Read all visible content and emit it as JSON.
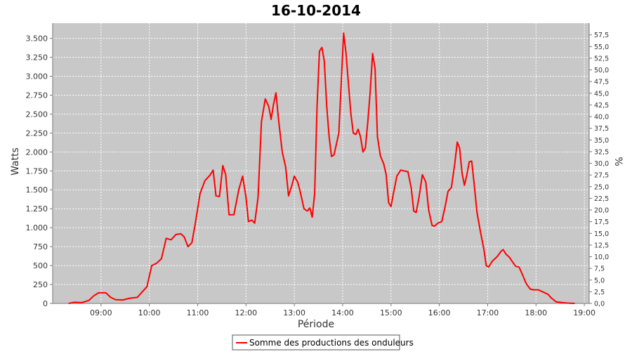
{
  "chart_data": {
    "type": "line",
    "title": "16-10-2014",
    "xlabel": "Période",
    "ylabel": "Watts",
    "y2label": "%",
    "xlim": [
      8.0,
      19.1
    ],
    "ylim": [
      0,
      3700
    ],
    "y2lim": [
      0,
      60
    ],
    "x_ticks": [
      {
        "value": 9,
        "label": "09:00"
      },
      {
        "value": 10,
        "label": "10:00"
      },
      {
        "value": 11,
        "label": "11:00"
      },
      {
        "value": 12,
        "label": "12:00"
      },
      {
        "value": 13,
        "label": "13:00"
      },
      {
        "value": 14,
        "label": "14:00"
      },
      {
        "value": 15,
        "label": "15:00"
      },
      {
        "value": 16,
        "label": "16:00"
      },
      {
        "value": 17,
        "label": "17:00"
      },
      {
        "value": 18,
        "label": "18:00"
      },
      {
        "value": 19,
        "label": "19:00"
      }
    ],
    "y_ticks": [
      {
        "value": 0,
        "label": "0"
      },
      {
        "value": 250,
        "label": "250"
      },
      {
        "value": 500,
        "label": "500"
      },
      {
        "value": 750,
        "label": "750"
      },
      {
        "value": 1000,
        "label": "1.000"
      },
      {
        "value": 1250,
        "label": "1.250"
      },
      {
        "value": 1500,
        "label": "1.500"
      },
      {
        "value": 1750,
        "label": "1.750"
      },
      {
        "value": 2000,
        "label": "2.000"
      },
      {
        "value": 2250,
        "label": "2.250"
      },
      {
        "value": 2500,
        "label": "2.500"
      },
      {
        "value": 2750,
        "label": "2.750"
      },
      {
        "value": 3000,
        "label": "3.000"
      },
      {
        "value": 3250,
        "label": "3.250"
      },
      {
        "value": 3500,
        "label": "3.500"
      }
    ],
    "y2_ticks": [
      {
        "value": 0,
        "label": "0,0"
      },
      {
        "value": 2.5,
        "label": "2,5"
      },
      {
        "value": 5,
        "label": "5,0"
      },
      {
        "value": 7.5,
        "label": "7,5"
      },
      {
        "value": 10,
        "label": "10,0"
      },
      {
        "value": 12.5,
        "label": "12,5"
      },
      {
        "value": 15,
        "label": "15,0"
      },
      {
        "value": 17.5,
        "label": "17,5"
      },
      {
        "value": 20,
        "label": "20,0"
      },
      {
        "value": 22.5,
        "label": "22,5"
      },
      {
        "value": 25,
        "label": "25,0"
      },
      {
        "value": 27.5,
        "label": "27,5"
      },
      {
        "value": 30,
        "label": "30,0"
      },
      {
        "value": 32.5,
        "label": "32,5"
      },
      {
        "value": 35,
        "label": "35,0"
      },
      {
        "value": 37.5,
        "label": "37,5"
      },
      {
        "value": 40,
        "label": "40,0"
      },
      {
        "value": 42.5,
        "label": "42,5"
      },
      {
        "value": 45,
        "label": "45,0"
      },
      {
        "value": 47.5,
        "label": "47,5"
      },
      {
        "value": 50,
        "label": "50,0"
      },
      {
        "value": 52.5,
        "label": "52,5"
      },
      {
        "value": 55,
        "label": "55,0"
      },
      {
        "value": 57.5,
        "label": "57,5"
      }
    ],
    "grid": true,
    "legend_position": "bottom-center",
    "colors": {
      "background": "#c8c8c8",
      "grid": "#ffffff",
      "series": "#ff0000"
    },
    "series": [
      {
        "name": "Somme des productions des onduleurs",
        "points": [
          [
            8.33,
            0
          ],
          [
            8.45,
            15
          ],
          [
            8.6,
            10
          ],
          [
            8.75,
            40
          ],
          [
            8.85,
            100
          ],
          [
            8.95,
            140
          ],
          [
            9.1,
            140
          ],
          [
            9.2,
            80
          ],
          [
            9.3,
            50
          ],
          [
            9.45,
            45
          ],
          [
            9.6,
            70
          ],
          [
            9.75,
            80
          ],
          [
            9.85,
            150
          ],
          [
            9.95,
            220
          ],
          [
            10.05,
            500
          ],
          [
            10.15,
            530
          ],
          [
            10.25,
            590
          ],
          [
            10.35,
            860
          ],
          [
            10.45,
            840
          ],
          [
            10.55,
            910
          ],
          [
            10.65,
            920
          ],
          [
            10.72,
            880
          ],
          [
            10.8,
            750
          ],
          [
            10.88,
            800
          ],
          [
            10.95,
            1050
          ],
          [
            11.05,
            1450
          ],
          [
            11.15,
            1620
          ],
          [
            11.25,
            1690
          ],
          [
            11.32,
            1760
          ],
          [
            11.38,
            1420
          ],
          [
            11.45,
            1410
          ],
          [
            11.52,
            1820
          ],
          [
            11.58,
            1700
          ],
          [
            11.65,
            1170
          ],
          [
            11.75,
            1170
          ],
          [
            11.85,
            1500
          ],
          [
            11.93,
            1680
          ],
          [
            12.0,
            1400
          ],
          [
            12.05,
            1080
          ],
          [
            12.12,
            1100
          ],
          [
            12.18,
            1060
          ],
          [
            12.25,
            1400
          ],
          [
            12.32,
            2400
          ],
          [
            12.4,
            2700
          ],
          [
            12.47,
            2600
          ],
          [
            12.52,
            2430
          ],
          [
            12.57,
            2630
          ],
          [
            12.62,
            2780
          ],
          [
            12.67,
            2450
          ],
          [
            12.75,
            2000
          ],
          [
            12.82,
            1800
          ],
          [
            12.88,
            1420
          ],
          [
            12.95,
            1560
          ],
          [
            13.0,
            1680
          ],
          [
            13.07,
            1600
          ],
          [
            13.12,
            1480
          ],
          [
            13.2,
            1250
          ],
          [
            13.27,
            1220
          ],
          [
            13.32,
            1260
          ],
          [
            13.37,
            1140
          ],
          [
            13.42,
            1450
          ],
          [
            13.47,
            2600
          ],
          [
            13.52,
            3330
          ],
          [
            13.57,
            3380
          ],
          [
            13.62,
            3200
          ],
          [
            13.67,
            2600
          ],
          [
            13.72,
            2200
          ],
          [
            13.77,
            1940
          ],
          [
            13.82,
            1960
          ],
          [
            13.87,
            2100
          ],
          [
            13.92,
            2250
          ],
          [
            13.97,
            2900
          ],
          [
            14.02,
            3570
          ],
          [
            14.07,
            3300
          ],
          [
            14.12,
            2900
          ],
          [
            14.17,
            2500
          ],
          [
            14.22,
            2250
          ],
          [
            14.27,
            2230
          ],
          [
            14.32,
            2300
          ],
          [
            14.37,
            2200
          ],
          [
            14.42,
            2000
          ],
          [
            14.47,
            2050
          ],
          [
            14.52,
            2400
          ],
          [
            14.57,
            2800
          ],
          [
            14.62,
            3300
          ],
          [
            14.67,
            3100
          ],
          [
            14.72,
            2200
          ],
          [
            14.78,
            1950
          ],
          [
            14.85,
            1840
          ],
          [
            14.9,
            1700
          ],
          [
            14.95,
            1330
          ],
          [
            15.0,
            1280
          ],
          [
            15.05,
            1450
          ],
          [
            15.12,
            1680
          ],
          [
            15.2,
            1760
          ],
          [
            15.27,
            1750
          ],
          [
            15.35,
            1740
          ],
          [
            15.42,
            1520
          ],
          [
            15.47,
            1220
          ],
          [
            15.52,
            1200
          ],
          [
            15.58,
            1400
          ],
          [
            15.65,
            1700
          ],
          [
            15.72,
            1600
          ],
          [
            15.78,
            1230
          ],
          [
            15.85,
            1030
          ],
          [
            15.9,
            1020
          ],
          [
            15.97,
            1060
          ],
          [
            16.05,
            1080
          ],
          [
            16.12,
            1280
          ],
          [
            16.18,
            1480
          ],
          [
            16.25,
            1530
          ],
          [
            16.32,
            1850
          ],
          [
            16.37,
            2130
          ],
          [
            16.42,
            2050
          ],
          [
            16.47,
            1720
          ],
          [
            16.52,
            1560
          ],
          [
            16.57,
            1700
          ],
          [
            16.62,
            1870
          ],
          [
            16.67,
            1880
          ],
          [
            16.72,
            1580
          ],
          [
            16.78,
            1200
          ],
          [
            16.85,
            950
          ],
          [
            16.92,
            720
          ],
          [
            16.97,
            500
          ],
          [
            17.02,
            480
          ],
          [
            17.1,
            560
          ],
          [
            17.2,
            620
          ],
          [
            17.28,
            690
          ],
          [
            17.32,
            710
          ],
          [
            17.38,
            650
          ],
          [
            17.45,
            610
          ],
          [
            17.5,
            560
          ],
          [
            17.58,
            490
          ],
          [
            17.65,
            480
          ],
          [
            17.72,
            380
          ],
          [
            17.8,
            260
          ],
          [
            17.88,
            190
          ],
          [
            17.95,
            180
          ],
          [
            18.05,
            180
          ],
          [
            18.15,
            150
          ],
          [
            18.25,
            120
          ],
          [
            18.32,
            70
          ],
          [
            18.42,
            20
          ],
          [
            18.55,
            10
          ],
          [
            18.65,
            5
          ],
          [
            18.8,
            0
          ]
        ]
      }
    ]
  }
}
